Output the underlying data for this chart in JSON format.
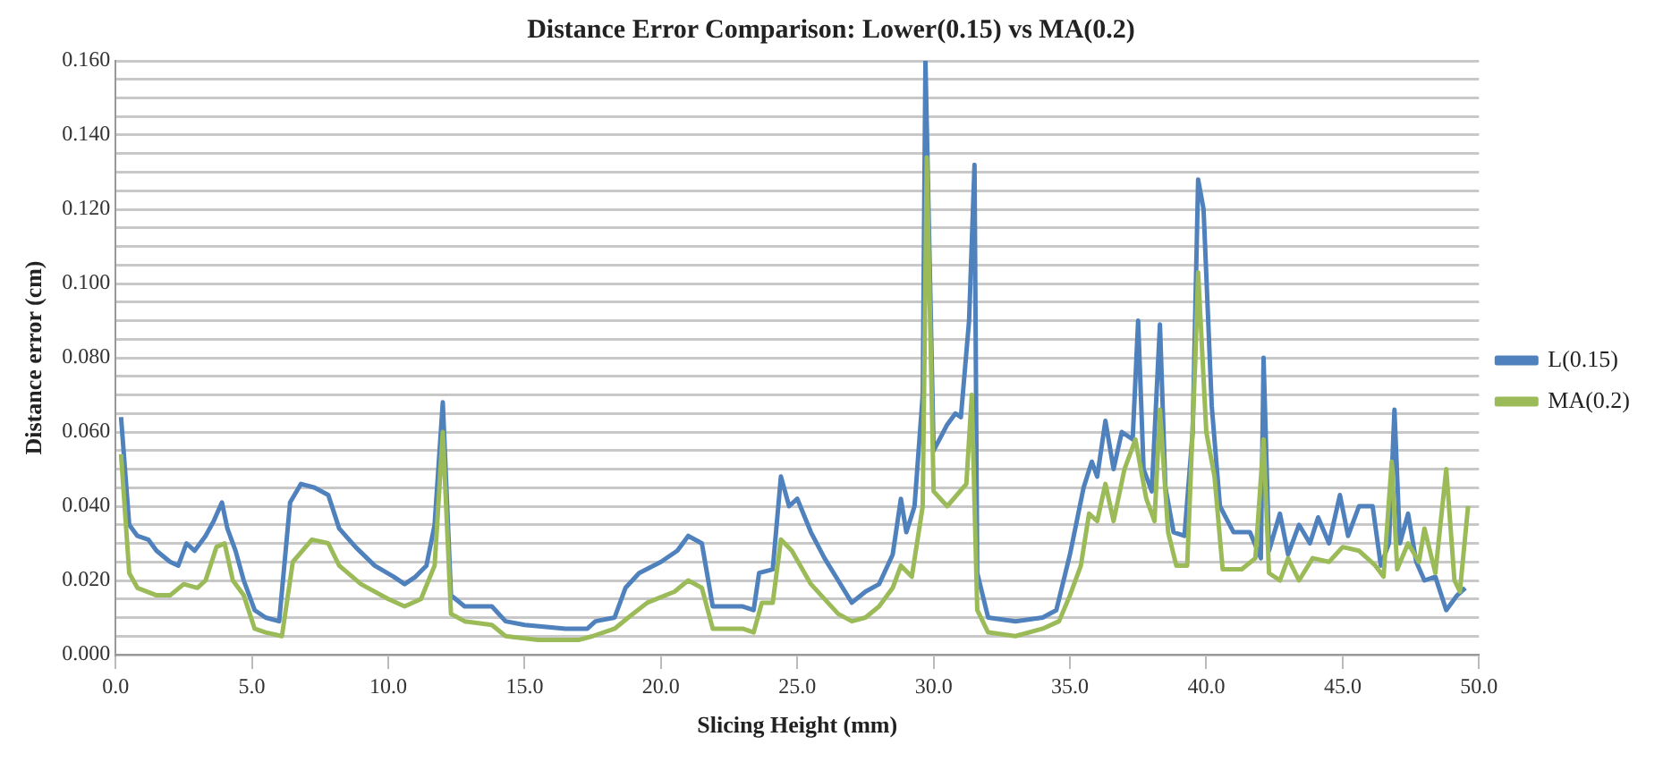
{
  "chart_data": {
    "type": "line",
    "title": "Distance Error Comparison: Lower(0.15) vs MA(0.2)",
    "xlabel": "Slicing Height (mm)",
    "ylabel": "Distance error (cm)",
    "legend": "right",
    "grid": "y",
    "xlim": [
      0,
      50
    ],
    "xticks": [
      {
        "value": 0,
        "label": "0.0"
      },
      {
        "value": 5,
        "label": "5.0"
      },
      {
        "value": 10,
        "label": "10.0"
      },
      {
        "value": 15,
        "label": "15.0"
      },
      {
        "value": 20,
        "label": "20.0"
      },
      {
        "value": 25,
        "label": "25.0"
      },
      {
        "value": 30,
        "label": "30.0"
      },
      {
        "value": 35,
        "label": "35.0"
      },
      {
        "value": 40,
        "label": "40.0"
      },
      {
        "value": 45,
        "label": "45.0"
      },
      {
        "value": 50,
        "label": "50.0"
      }
    ],
    "ylim": [
      0,
      0.16
    ],
    "yticks": [
      {
        "value": 0,
        "label": "0.000"
      },
      {
        "value": 0.005,
        "label": null
      },
      {
        "value": 0.01,
        "label": null
      },
      {
        "value": 0.015,
        "label": null
      },
      {
        "value": 0.02,
        "label": "0.020"
      },
      {
        "value": 0.025,
        "label": null
      },
      {
        "value": 0.03,
        "label": null
      },
      {
        "value": 0.035,
        "label": null
      },
      {
        "value": 0.04,
        "label": "0.040"
      },
      {
        "value": 0.045,
        "label": null
      },
      {
        "value": 0.05,
        "label": null
      },
      {
        "value": 0.055,
        "label": null
      },
      {
        "value": 0.06,
        "label": "0.060"
      },
      {
        "value": 0.065,
        "label": null
      },
      {
        "value": 0.07,
        "label": null
      },
      {
        "value": 0.075,
        "label": null
      },
      {
        "value": 0.08,
        "label": "0.080"
      },
      {
        "value": 0.085,
        "label": null
      },
      {
        "value": 0.09,
        "label": null
      },
      {
        "value": 0.095,
        "label": null
      },
      {
        "value": 0.1,
        "label": "0.100"
      },
      {
        "value": 0.105,
        "label": null
      },
      {
        "value": 0.11,
        "label": null
      },
      {
        "value": 0.115,
        "label": null
      },
      {
        "value": 0.12,
        "label": "0.120"
      },
      {
        "value": 0.125,
        "label": null
      },
      {
        "value": 0.13,
        "label": null
      },
      {
        "value": 0.135,
        "label": null
      },
      {
        "value": 0.14,
        "label": "0.140"
      },
      {
        "value": 0.145,
        "label": null
      },
      {
        "value": 0.15,
        "label": null
      },
      {
        "value": 0.155,
        "label": null
      },
      {
        "value": 0.16,
        "label": "0.160"
      }
    ],
    "series": [
      {
        "name": "L(0.15)",
        "color": "#4f81bd",
        "x": [
          0.2,
          0.5,
          0.8,
          1.2,
          1.5,
          2.0,
          2.3,
          2.6,
          2.9,
          3.3,
          3.6,
          3.9,
          4.1,
          4.4,
          4.7,
          5.1,
          5.5,
          6.0,
          6.4,
          6.8,
          7.3,
          7.8,
          8.2,
          8.8,
          9.5,
          10.2,
          10.6,
          11.0,
          11.4,
          11.7,
          12.0,
          12.3,
          12.8,
          13.8,
          14.3,
          15.0,
          16.5,
          17.3,
          17.6,
          18.3,
          18.7,
          19.2,
          20.0,
          20.6,
          21.0,
          21.5,
          21.9,
          23.0,
          23.4,
          23.6,
          24.1,
          24.4,
          24.7,
          25.0,
          25.5,
          26.0,
          26.5,
          27.0,
          27.5,
          28.0,
          28.5,
          28.8,
          29.0,
          29.3,
          29.6,
          29.7,
          30.0,
          30.5,
          30.8,
          31.0,
          31.3,
          31.5,
          31.6,
          32.0,
          33.0,
          34.0,
          34.5,
          35.0,
          35.5,
          35.8,
          36.0,
          36.3,
          36.6,
          36.9,
          37.3,
          37.5,
          37.7,
          38.0,
          38.3,
          38.5,
          38.8,
          39.2,
          39.5,
          39.7,
          39.9,
          40.2,
          40.5,
          41.0,
          41.6,
          42.0,
          42.1,
          42.3,
          42.7,
          43.0,
          43.4,
          43.8,
          44.1,
          44.5,
          44.9,
          45.2,
          45.6,
          46.1,
          46.4,
          46.7,
          46.9,
          47.1,
          47.4,
          47.7,
          48.0,
          48.4,
          48.8,
          49.2,
          49.5
        ],
        "values": [
          0.064,
          0.035,
          0.032,
          0.031,
          0.028,
          0.025,
          0.024,
          0.03,
          0.028,
          0.032,
          0.036,
          0.041,
          0.034,
          0.028,
          0.02,
          0.012,
          0.01,
          0.009,
          0.041,
          0.046,
          0.045,
          0.043,
          0.034,
          0.029,
          0.024,
          0.021,
          0.019,
          0.021,
          0.024,
          0.035,
          0.068,
          0.016,
          0.013,
          0.013,
          0.009,
          0.008,
          0.007,
          0.007,
          0.009,
          0.01,
          0.018,
          0.022,
          0.025,
          0.028,
          0.032,
          0.03,
          0.013,
          0.013,
          0.012,
          0.022,
          0.023,
          0.048,
          0.04,
          0.042,
          0.033,
          0.026,
          0.02,
          0.014,
          0.017,
          0.019,
          0.027,
          0.042,
          0.033,
          0.04,
          0.07,
          0.16,
          0.055,
          0.062,
          0.065,
          0.064,
          0.09,
          0.132,
          0.022,
          0.01,
          0.009,
          0.01,
          0.012,
          0.027,
          0.045,
          0.052,
          0.048,
          0.063,
          0.05,
          0.06,
          0.058,
          0.09,
          0.05,
          0.044,
          0.089,
          0.045,
          0.033,
          0.032,
          0.06,
          0.128,
          0.12,
          0.067,
          0.04,
          0.033,
          0.033,
          0.026,
          0.08,
          0.028,
          0.038,
          0.027,
          0.035,
          0.03,
          0.037,
          0.03,
          0.043,
          0.032,
          0.04,
          0.04,
          0.024,
          0.03,
          0.066,
          0.03,
          0.038,
          0.025,
          0.02,
          0.021,
          0.012,
          0.016,
          0.018
        ]
      },
      {
        "name": "MA(0.2)",
        "color": "#9bbb59",
        "x": [
          0.2,
          0.5,
          0.8,
          1.5,
          2.0,
          2.5,
          3.0,
          3.3,
          3.7,
          4.0,
          4.3,
          4.7,
          5.1,
          5.5,
          6.1,
          6.5,
          7.2,
          7.8,
          8.2,
          9.0,
          10.0,
          10.6,
          11.2,
          11.7,
          12.0,
          12.3,
          12.8,
          13.8,
          14.3,
          15.5,
          17.0,
          17.5,
          18.3,
          18.8,
          19.5,
          20.5,
          21.0,
          21.5,
          21.9,
          23.0,
          23.4,
          23.7,
          24.1,
          24.4,
          24.8,
          25.5,
          26.5,
          27.0,
          27.5,
          28.0,
          28.5,
          28.8,
          29.2,
          29.6,
          29.75,
          30.0,
          30.5,
          31.2,
          31.4,
          31.6,
          32.0,
          33.0,
          34.0,
          34.6,
          35.0,
          35.4,
          35.7,
          36.0,
          36.3,
          36.6,
          37.0,
          37.4,
          37.8,
          38.1,
          38.3,
          38.6,
          38.9,
          39.3,
          39.6,
          39.7,
          40.0,
          40.3,
          40.6,
          41.3,
          41.8,
          42.1,
          42.3,
          42.7,
          43.0,
          43.4,
          43.9,
          44.5,
          45.0,
          45.6,
          46.2,
          46.5,
          46.8,
          47.0,
          47.4,
          47.8,
          48.0,
          48.4,
          48.8,
          49.1,
          49.3,
          49.6
        ],
        "values": [
          0.054,
          0.022,
          0.018,
          0.016,
          0.016,
          0.019,
          0.018,
          0.02,
          0.029,
          0.03,
          0.02,
          0.016,
          0.007,
          0.006,
          0.005,
          0.025,
          0.031,
          0.03,
          0.024,
          0.019,
          0.015,
          0.013,
          0.015,
          0.024,
          0.06,
          0.011,
          0.009,
          0.008,
          0.005,
          0.004,
          0.004,
          0.005,
          0.007,
          0.01,
          0.014,
          0.017,
          0.02,
          0.018,
          0.007,
          0.007,
          0.006,
          0.014,
          0.014,
          0.031,
          0.028,
          0.019,
          0.011,
          0.009,
          0.01,
          0.013,
          0.018,
          0.024,
          0.021,
          0.04,
          0.134,
          0.044,
          0.04,
          0.046,
          0.07,
          0.012,
          0.006,
          0.005,
          0.007,
          0.009,
          0.016,
          0.024,
          0.038,
          0.036,
          0.046,
          0.036,
          0.05,
          0.058,
          0.042,
          0.036,
          0.066,
          0.033,
          0.024,
          0.024,
          0.08,
          0.103,
          0.06,
          0.048,
          0.023,
          0.023,
          0.026,
          0.058,
          0.022,
          0.02,
          0.026,
          0.02,
          0.026,
          0.025,
          0.029,
          0.028,
          0.024,
          0.021,
          0.052,
          0.023,
          0.03,
          0.025,
          0.034,
          0.022,
          0.05,
          0.02,
          0.017,
          0.04
        ]
      }
    ]
  }
}
